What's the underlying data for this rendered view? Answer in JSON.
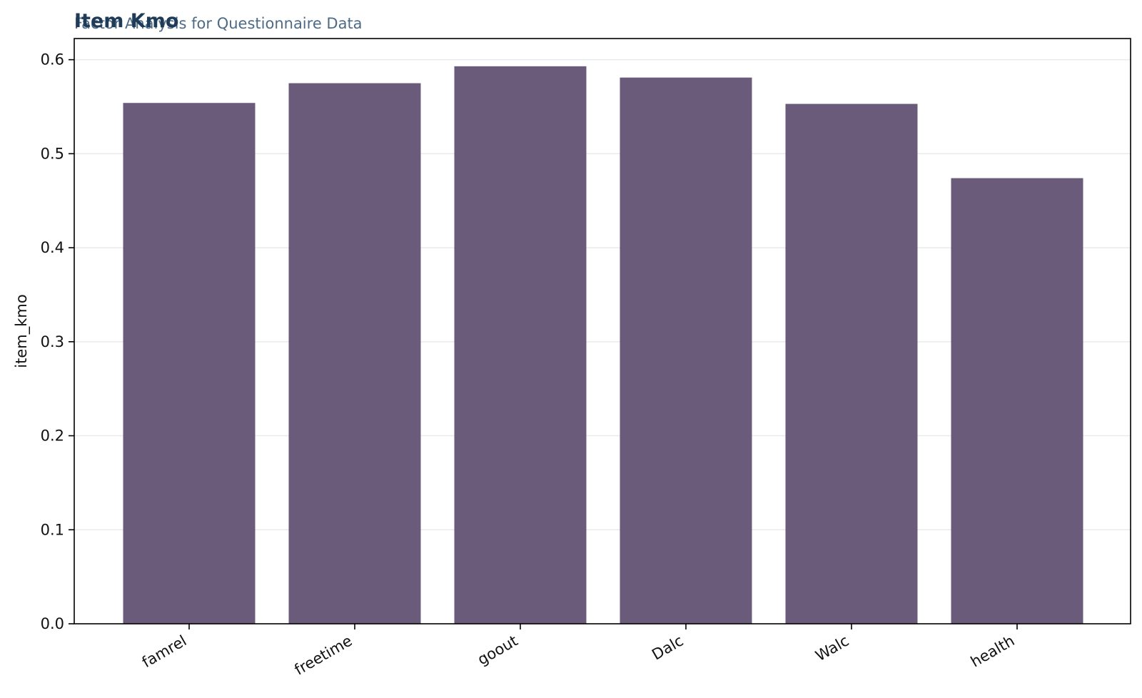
{
  "chart_data": {
    "type": "bar",
    "title": "Item Kmo",
    "subtitle": "Factor Analysis for Questionnaire Data",
    "xlabel": "",
    "ylabel": "item_kmo",
    "categories": [
      "famrel",
      "freetime",
      "goout",
      "Dalc",
      "Walc",
      "health"
    ],
    "values": [
      0.554,
      0.575,
      0.593,
      0.581,
      0.553,
      0.474
    ],
    "ylim": [
      0,
      0.6225
    ],
    "yticks": [
      0.0,
      0.1,
      0.2,
      0.3,
      0.4,
      0.5,
      0.6
    ],
    "ytick_labels": [
      "0.0",
      "0.1",
      "0.2",
      "0.3",
      "0.4",
      "0.5",
      "0.6"
    ],
    "grid": "horizontal",
    "bar_color": "#6b5b7b"
  }
}
